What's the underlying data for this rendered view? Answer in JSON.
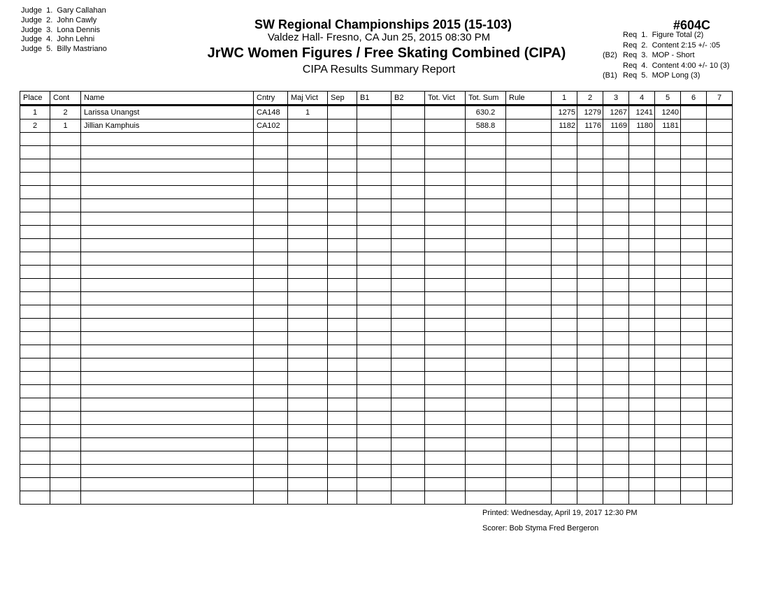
{
  "judges": [
    "Judge  1.  Gary Callahan",
    "Judge  2.  John Cawly",
    "Judge  3.  Lona Dennis",
    "Judge  4.  John Lehni",
    "Judge  5.  Billy Mastriano"
  ],
  "header": {
    "title": "SW Regional Championships 2015 (15-103)",
    "venue": "Valdez Hall- Fresno, CA  Jun 25, 2015  08:30 PM",
    "event": "JrWC Women Figures / Free Skating Combined (CIPA)",
    "report": "CIPA Results Summary Report",
    "event_number": "#604C"
  },
  "requirements": [
    {
      "prefix": "",
      "text": "Req  1.  Figure Total (2)"
    },
    {
      "prefix": "",
      "text": "Req  2.  Content 2:15 +/- :05"
    },
    {
      "prefix": "(B2)",
      "text": "Req  3.  MOP - Short"
    },
    {
      "prefix": "",
      "text": "Req  4.  Content 4:00 +/- 10 (3)"
    },
    {
      "prefix": "(B1)",
      "text": "Req  5.  MOP Long (3)"
    }
  ],
  "table": {
    "columns": [
      "Place",
      "Cont",
      "Name",
      "Cntry",
      "Maj Vict",
      "Sep",
      "B1",
      "B2",
      "Tot. Vict",
      "Tot. Sum",
      "Rule",
      "1",
      "2",
      "3",
      "4",
      "5",
      "6",
      "7"
    ],
    "rows": [
      [
        "1",
        "2",
        "Larissa Unangst",
        "CA148",
        "1",
        "",
        "",
        "",
        "",
        "630.2",
        "",
        "1275",
        "1279",
        "1267",
        "1241",
        "1240",
        "",
        ""
      ],
      [
        "2",
        "1",
        "Jillian Kamphuis",
        "CA102",
        "",
        "",
        "",
        "",
        "",
        "588.8",
        "",
        "1182",
        "1176",
        "1169",
        "1180",
        "1181",
        "",
        ""
      ]
    ],
    "total_rows": 30
  },
  "footer": {
    "printed": "Printed:  Wednesday, April 19, 2017  12:30 PM",
    "scorer": "Scorer:  Bob Styma Fred Bergeron"
  }
}
